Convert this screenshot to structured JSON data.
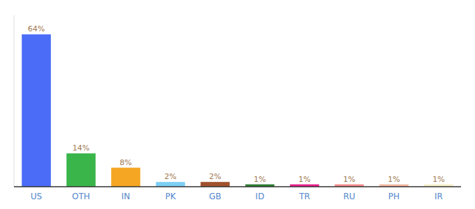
{
  "chart_data": {
    "type": "bar",
    "categories": [
      "US",
      "OTH",
      "IN",
      "PK",
      "GB",
      "ID",
      "TR",
      "RU",
      "PH",
      "IR"
    ],
    "values": [
      64,
      14,
      8,
      2,
      2,
      1,
      1,
      1,
      1,
      1
    ],
    "value_labels": [
      "64%",
      "14%",
      "8%",
      "2%",
      "2%",
      "1%",
      "1%",
      "1%",
      "1%",
      "1%"
    ],
    "colors": [
      "#4a6cf7",
      "#3ab54a",
      "#f5a623",
      "#7ecef4",
      "#a0522d",
      "#2e7d32",
      "#e91e8c",
      "#f48a8a",
      "#f4b8a0",
      "#f5f0c8"
    ],
    "ylim": [
      0,
      72
    ],
    "data_labels": true,
    "tick_labels": "x",
    "grid": false
  }
}
